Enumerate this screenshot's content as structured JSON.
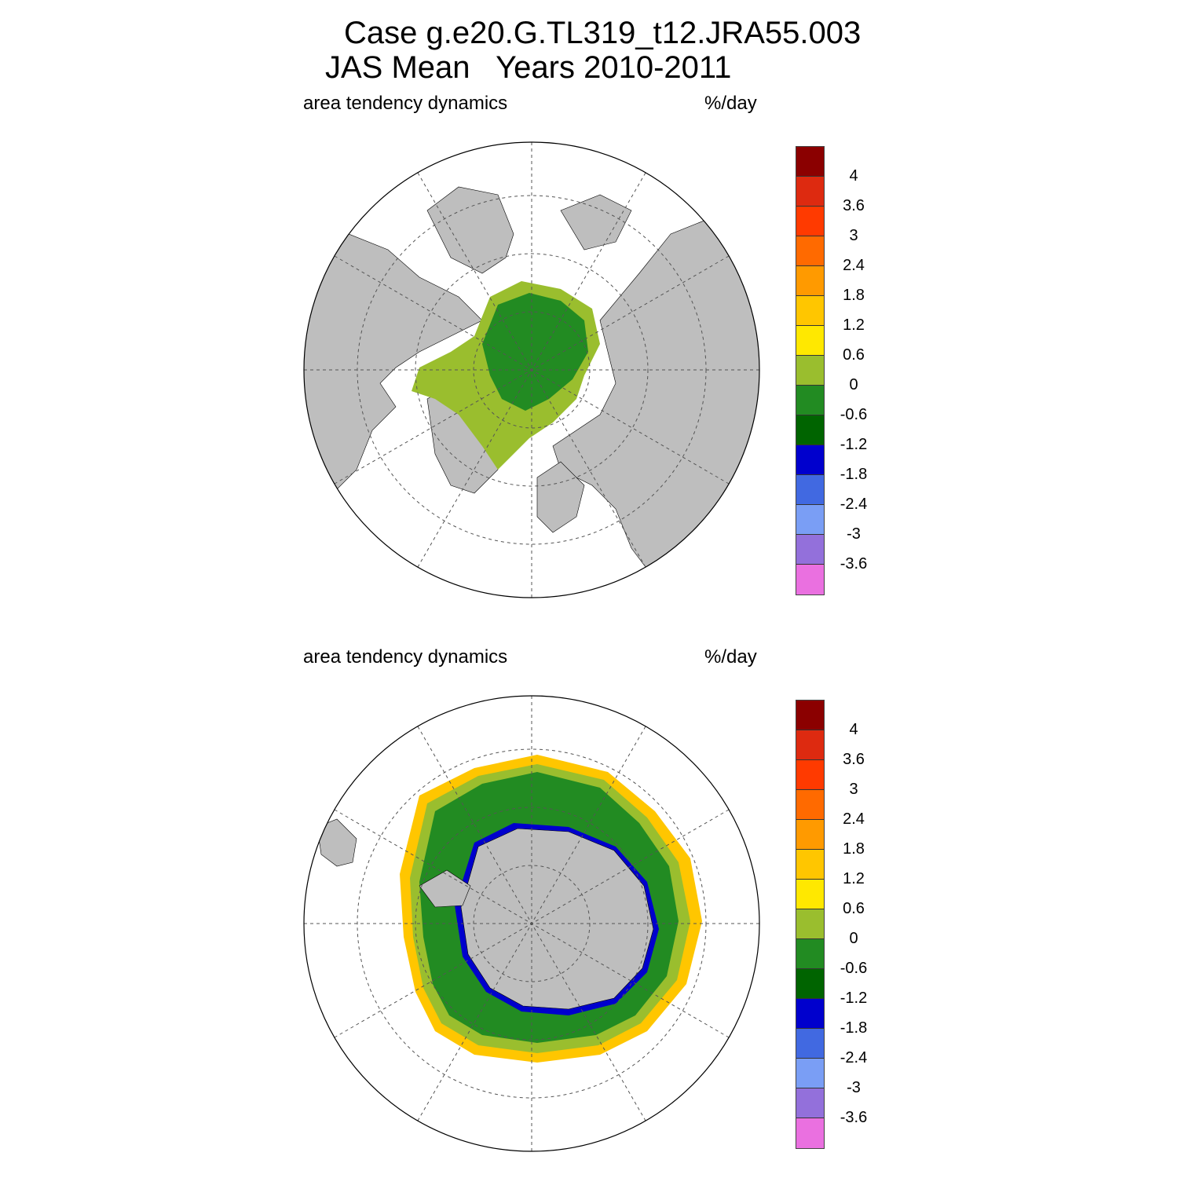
{
  "title_line1": "Case g.e20.G.TL319_t12.JRA55.003",
  "title_line2": "JAS Mean   Years 2010-2011",
  "panels": [
    {
      "left_label": "area tendency dynamics",
      "right_label": "%/day"
    },
    {
      "left_label": "area tendency dynamics",
      "right_label": "%/day"
    }
  ],
  "colorbar": {
    "tick_labels": [
      "4",
      "3.6",
      "3",
      "2.4",
      "1.8",
      "1.2",
      "0.6",
      "0",
      "-0.6",
      "-1.2",
      "-1.8",
      "-2.4",
      "-3",
      "-3.6"
    ],
    "colors": [
      "#8b0000",
      "#dd2a10",
      "#ff3a00",
      "#ff6a00",
      "#ff9a00",
      "#ffc600",
      "#ffe800",
      "#9abe2e",
      "#228b22",
      "#006400",
      "#0000cd",
      "#4169e1",
      "#7a9ef5",
      "#9370db",
      "#ea70e0"
    ]
  },
  "colors": {
    "land": "#bebebe",
    "ocean": "#ffffff",
    "grid": "#555555",
    "ice_core": "#228b22",
    "ice_edge": "#9abe2e"
  }
}
